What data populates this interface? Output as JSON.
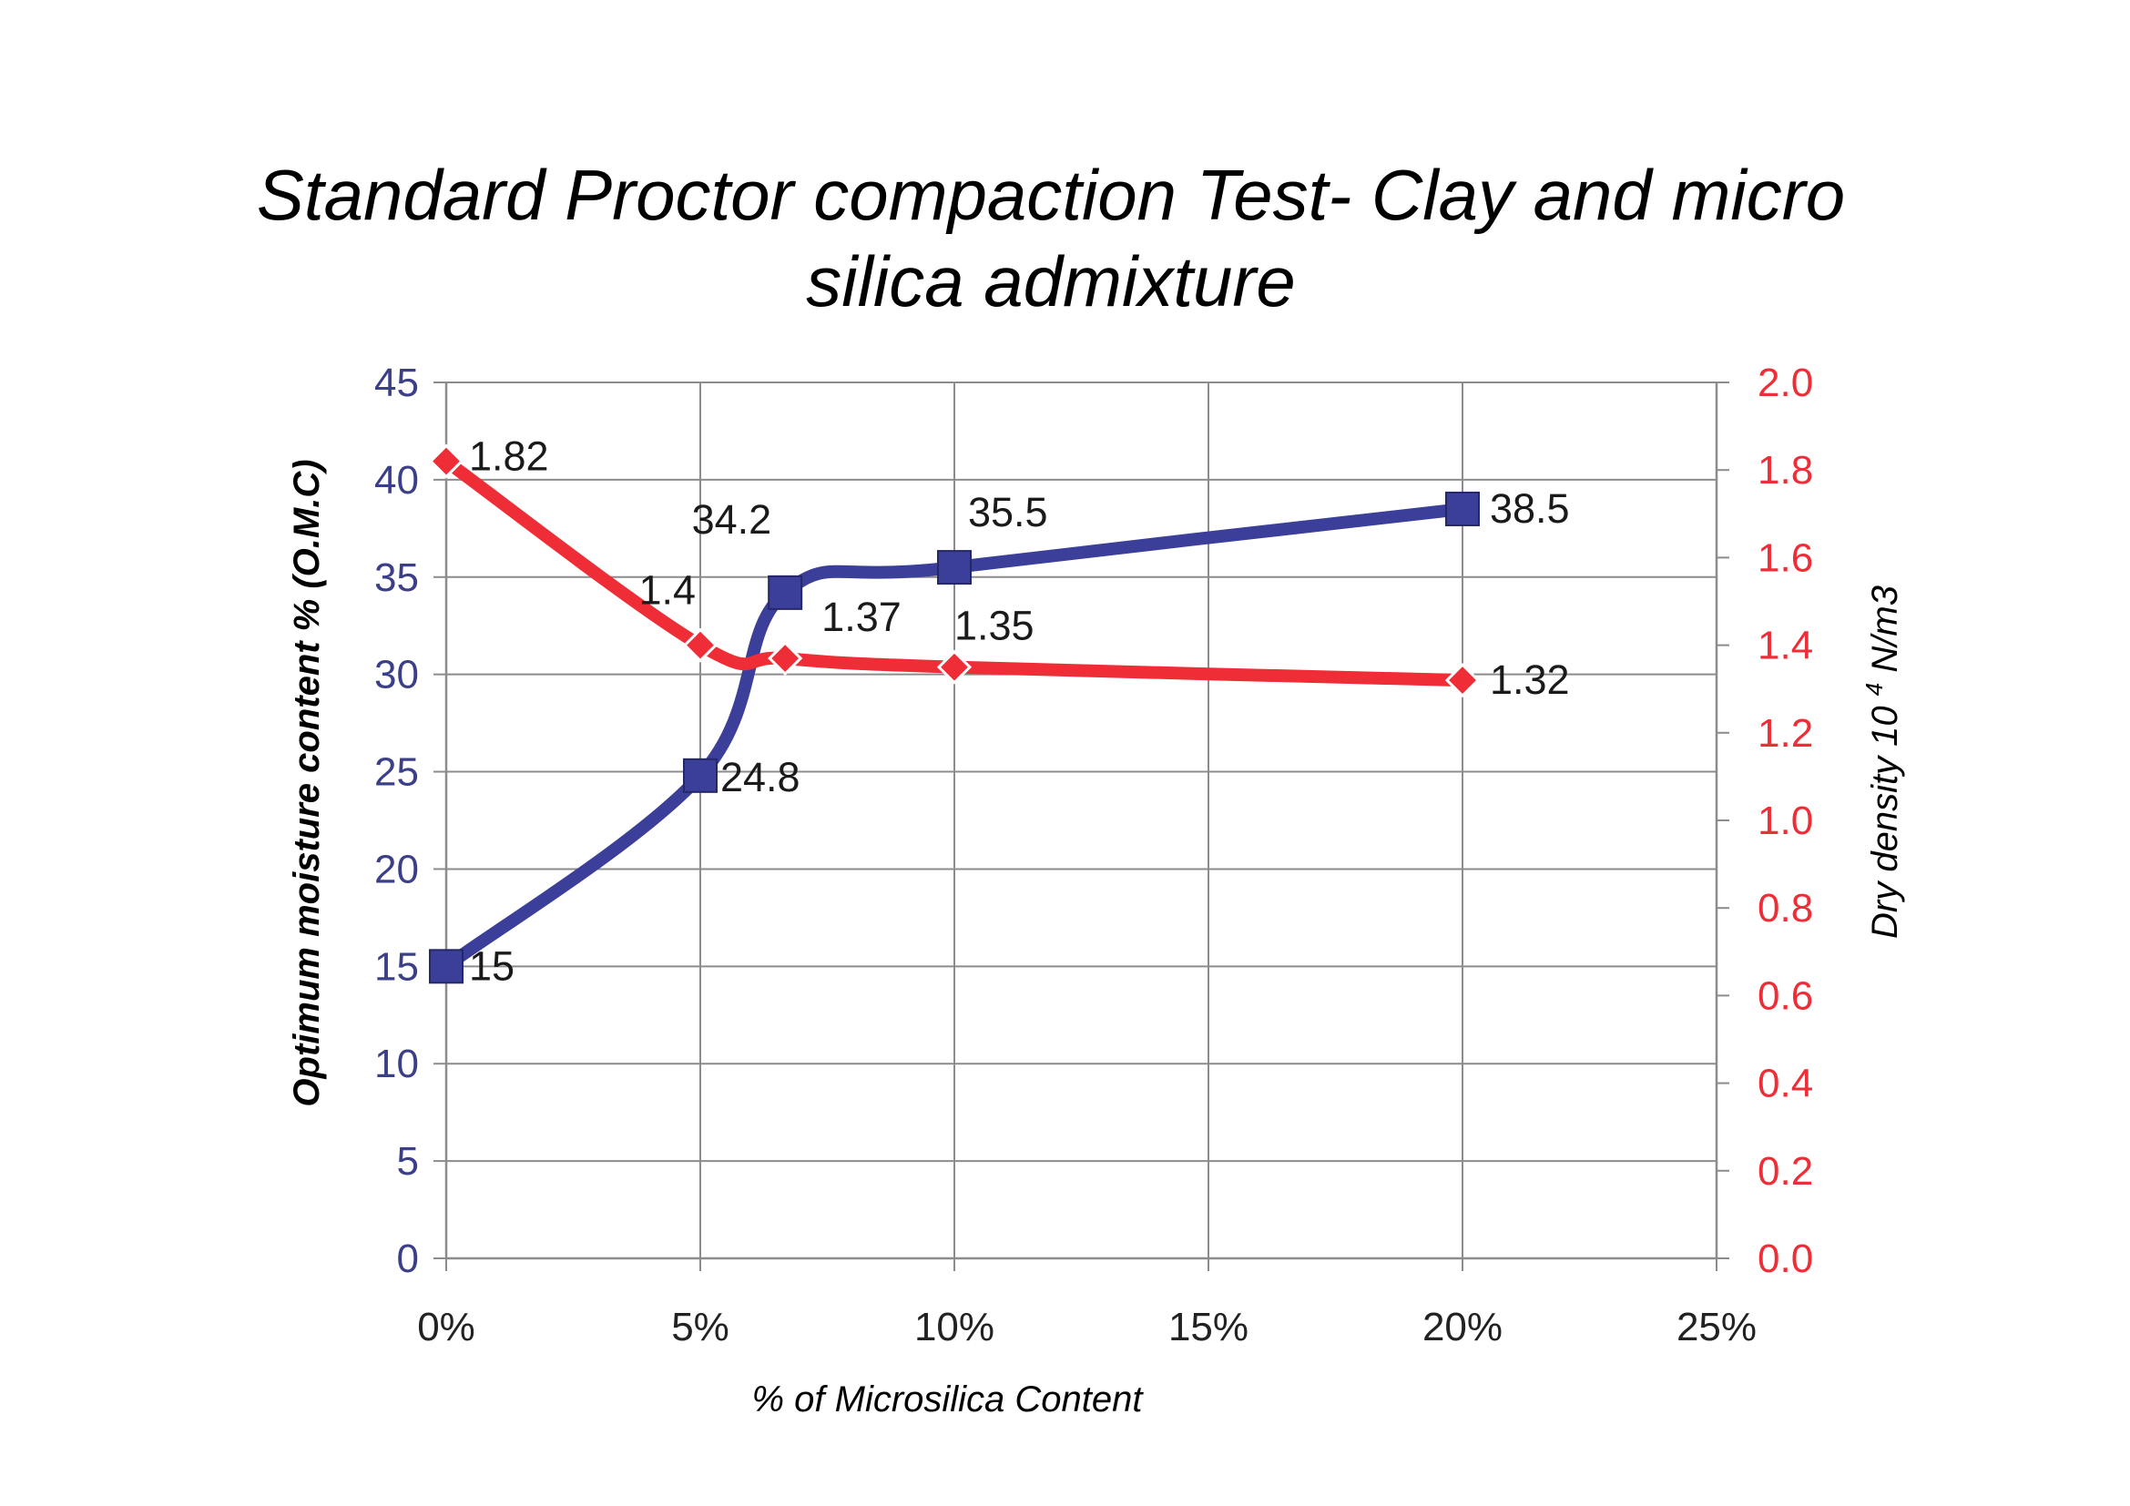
{
  "chart_data": {
    "type": "line",
    "title_lines": [
      "Standard Proctor compaction Test- Clay and micro",
      "silica admixture"
    ],
    "xlabel": "% of Microsilica  Content",
    "ylabel_left": "Optimum moisture content % (O.M.C)",
    "ylabel_right_a": "Dry density",
    "ylabel_right_b": "10",
    "ylabel_right_sup": "4",
    "ylabel_right_c": " N/m3",
    "xlim": [
      0,
      25
    ],
    "x_ticks": [
      0,
      5,
      10,
      15,
      20,
      25
    ],
    "x_tick_labels": [
      "0%",
      "5%",
      "10%",
      "15%",
      "20%",
      "25%"
    ],
    "ylim_left": [
      0,
      45
    ],
    "y_left_ticks": [
      0,
      5,
      10,
      15,
      20,
      25,
      30,
      35,
      40,
      45
    ],
    "y_left_tick_labels": [
      "0",
      "5",
      "10",
      "15",
      "20",
      "25",
      "30",
      "35",
      "40",
      "45"
    ],
    "ylim_right": [
      0,
      2.0
    ],
    "y_right_ticks": [
      0,
      0.2,
      0.4,
      0.6,
      0.8,
      1.0,
      1.2,
      1.4,
      1.6,
      1.8,
      2.0
    ],
    "y_right_tick_labels": [
      "0.0",
      "0.2",
      "0.4",
      "0.6",
      "0.8",
      "1.0",
      "1.2",
      "1.4",
      "1.6",
      "1.8",
      "2.0"
    ],
    "grid": true,
    "series": [
      {
        "axis": "left",
        "marker": "square",
        "color": "#3b3f99",
        "x": [
          0,
          5,
          6.67,
          10,
          20
        ],
        "values": [
          15,
          24.8,
          34.2,
          35.5,
          38.5
        ],
        "labels": [
          "15",
          "24.8",
          "34.2",
          "35.5",
          "38.5"
        ]
      },
      {
        "axis": "right",
        "marker": "diamond",
        "color": "#ee2d36",
        "x": [
          0,
          5,
          6.67,
          10,
          20
        ],
        "values": [
          1.82,
          1.4,
          1.37,
          1.35,
          1.32
        ],
        "labels": [
          "1.82",
          "1.4",
          "1.37",
          "1.35",
          "1.32"
        ]
      }
    ]
  },
  "colors": {
    "title": "#4a56a6",
    "left_axis": "#3b3f88",
    "right_axis": "#ee2d36",
    "grid": "#8c8c8c",
    "tick_text": "#222222"
  }
}
